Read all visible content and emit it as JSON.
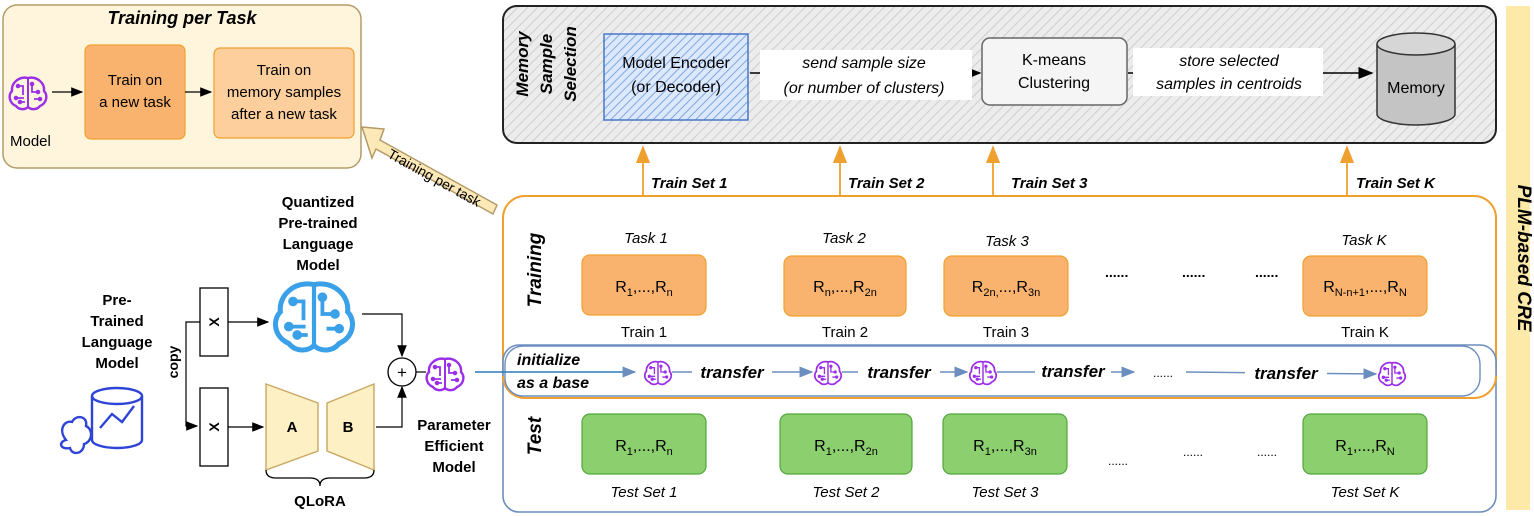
{
  "training_per_task": {
    "title": "Training  per Task",
    "model_label": "Model",
    "step1": [
      "Train on",
      "a new task"
    ],
    "step2": [
      "Train on",
      "memory samples",
      "after a new task"
    ],
    "arrow_label": "Training per task"
  },
  "memory_selection": {
    "title": [
      "Memory",
      "Sample",
      "Selection"
    ],
    "encoder": [
      "Model Encoder",
      "(or Decoder)"
    ],
    "send_label": [
      "send sample size",
      "(or number of clusters)"
    ],
    "kmeans": [
      "K-means",
      "Clustering"
    ],
    "store_label": [
      "store selected",
      "samples in centroids"
    ],
    "memory": "Memory"
  },
  "side_label": "PLM-based CRE",
  "train_sets": [
    "Train Set 1",
    "Train Set 2",
    "Train Set 3",
    "Train Set K"
  ],
  "dots": ".....",
  "dots_short": "......",
  "training_label": "Training",
  "test_label": "Test",
  "tasks": [
    {
      "task": "Task 1",
      "rel": "R",
      "rel_sub": "1",
      "rel_mid": ",...,R",
      "rel_sub2": "n",
      "train": "Train 1"
    },
    {
      "task": "Task 2",
      "rel": "R",
      "rel_sub": "n",
      "rel_mid": ",...,R",
      "rel_sub2": "2n",
      "train": "Train 2"
    },
    {
      "task": "Task 3",
      "rel": "R",
      "rel_sub": "2n,",
      "rel_mid": "...,R",
      "rel_sub2": "3n",
      "train": "Train 3"
    },
    {
      "task": "Task K",
      "rel": "R",
      "rel_sub": "N-n+1",
      "rel_mid": ",...,R",
      "rel_sub2": "N",
      "train": "Train K"
    }
  ],
  "tests": [
    {
      "rel": "R",
      "rel_sub": "1",
      "rel_mid": ",...,R",
      "rel_sub2": "n",
      "label": "Test Set 1"
    },
    {
      "rel": "R",
      "rel_sub": "1",
      "rel_mid": ",...,R",
      "rel_sub2": "2n",
      "label": "Test Set 2"
    },
    {
      "rel": "R",
      "rel_sub": "1",
      "rel_mid": ",...,R",
      "rel_sub2": "3n",
      "label": "Test Set 3"
    },
    {
      "rel": "R",
      "rel_sub": "1",
      "rel_mid": ",...,R",
      "rel_sub2": "N",
      "label": "Test Set K"
    }
  ],
  "transfer": {
    "init": [
      "initialize",
      "as a base"
    ],
    "label": "transfer",
    "dots": "......"
  },
  "qlora": {
    "quantized": [
      "Quantized",
      "Pre-trained",
      "Language",
      "Model"
    ],
    "pretrained": [
      "Pre-",
      "Trained",
      "Language",
      "Model"
    ],
    "copy": "copy",
    "x": "X",
    "a": "A",
    "b": "B",
    "plus": "+",
    "name": "QLoRA",
    "pem": [
      "Parameter",
      "Efficient",
      "Model"
    ]
  },
  "colors": {
    "orange_fill": "#f9b36e",
    "orange_stroke": "#f0a02e",
    "green_fill": "#8ccf6e",
    "green_stroke": "#4fa83a",
    "purple": "#9b2fe8",
    "blue_icon": "#3aa0e8",
    "band": "#fde9a8"
  }
}
